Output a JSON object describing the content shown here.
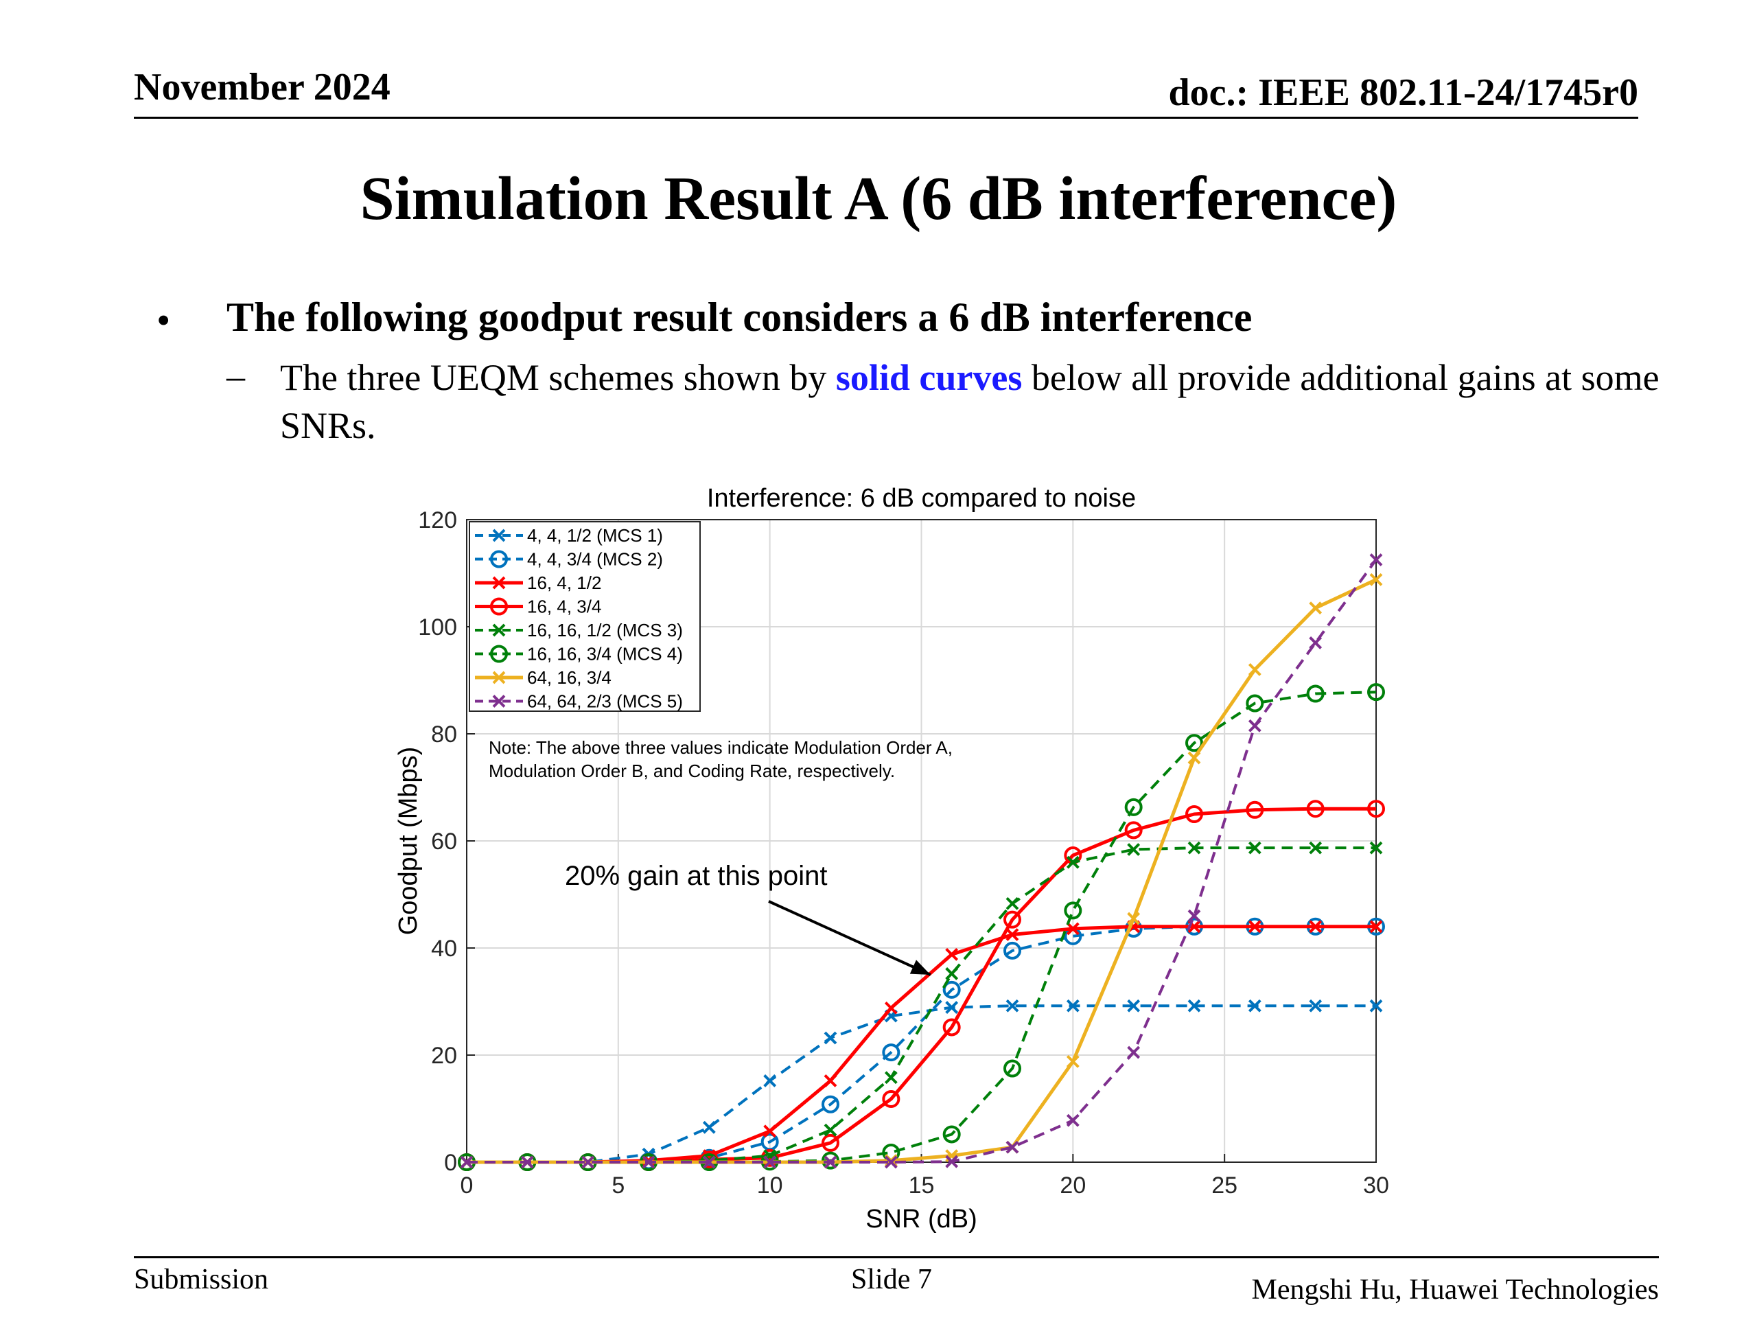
{
  "header": {
    "date": "November 2024",
    "doc": "doc.: IEEE 802.11-24/1745r0"
  },
  "slide_title": "Simulation Result A (6 dB interference)",
  "bullet": {
    "text": "The following goodput result considers a 6 dB interference",
    "sub_before": "The three UEQM schemes shown by ",
    "sub_highlight": "solid curves",
    "sub_after": " below all provide additional gains at some SNRs."
  },
  "colors": {
    "blue": "#0072bd",
    "red": "#ff0000",
    "green": "#00800a",
    "orange": "#edb120",
    "purple": "#7e2f8e",
    "highlight_text": "#1a1aff"
  },
  "chart_data": {
    "type": "line",
    "title": "Interference: 6 dB compared to noise",
    "xlabel": "SNR (dB)",
    "ylabel": "Goodput (Mbps)",
    "xlim": [
      0,
      30
    ],
    "ylim": [
      0,
      120
    ],
    "xticks": [
      0,
      5,
      10,
      15,
      20,
      25,
      30
    ],
    "yticks": [
      0,
      20,
      40,
      60,
      80,
      100,
      120
    ],
    "grid": true,
    "legend_position": "top-left",
    "x": [
      0,
      2,
      4,
      6,
      8,
      10,
      12,
      14,
      16,
      18,
      20,
      22,
      24,
      26,
      28,
      30
    ],
    "series": [
      {
        "name": "4, 4, 1/2 (MCS 1)",
        "color": "#0072bd",
        "style": "dashed",
        "marker": "x",
        "values": [
          0,
          0,
          0,
          1.5,
          6.5,
          15.2,
          23.2,
          27.3,
          28.9,
          29.2,
          29.2,
          29.2,
          29.2,
          29.2,
          29.2,
          29.2
        ]
      },
      {
        "name": "4, 4, 3/4 (MCS 2)",
        "color": "#0072bd",
        "style": "dashed",
        "marker": "o",
        "values": [
          0,
          0,
          0,
          0.2,
          0.8,
          3.8,
          10.8,
          20.5,
          32.2,
          39.5,
          42.2,
          43.6,
          44.0,
          44.0,
          44.0,
          44.0
        ]
      },
      {
        "name": "16, 4, 1/2",
        "color": "#ff0000",
        "style": "solid",
        "marker": "x",
        "values": [
          0,
          0,
          0,
          0.3,
          1.2,
          5.8,
          15.2,
          28.8,
          38.8,
          42.5,
          43.6,
          44.0,
          44.0,
          44.0,
          44.0,
          44.0
        ]
      },
      {
        "name": "16, 4, 3/4",
        "color": "#ff0000",
        "style": "solid",
        "marker": "o",
        "values": [
          0,
          0,
          0,
          0,
          0.5,
          0.8,
          3.6,
          11.8,
          25.2,
          45.3,
          57.3,
          62.0,
          65.0,
          65.8,
          66.0,
          66.0
        ]
      },
      {
        "name": "16, 16, 1/2 (MCS 3)",
        "color": "#00800a",
        "style": "dashed",
        "marker": "x",
        "values": [
          0,
          0,
          0,
          0,
          0.3,
          1.2,
          6.0,
          15.8,
          35.2,
          48.3,
          56.0,
          58.4,
          58.7,
          58.7,
          58.7,
          58.7
        ]
      },
      {
        "name": "16, 16, 3/4 (MCS 4)",
        "color": "#00800a",
        "style": "dashed",
        "marker": "o",
        "values": [
          0,
          0,
          0,
          0,
          0,
          0.1,
          0.3,
          1.8,
          5.2,
          17.5,
          47.0,
          66.3,
          78.3,
          85.7,
          87.5,
          87.8
        ]
      },
      {
        "name": "64, 16, 3/4",
        "color": "#edb120",
        "style": "solid",
        "marker": "x",
        "values": [
          0,
          0,
          0,
          0,
          0,
          0,
          0,
          0.3,
          1.2,
          2.8,
          18.8,
          45.5,
          75.5,
          92.0,
          103.5,
          108.8
        ]
      },
      {
        "name": "64, 64, 2/3 (MCS 5)",
        "color": "#7e2f8e",
        "style": "dashed",
        "marker": "x",
        "values": [
          0,
          0,
          0,
          0,
          0,
          0,
          0,
          0,
          0.1,
          2.8,
          7.8,
          20.5,
          46.0,
          81.5,
          97.0,
          112.5
        ]
      }
    ],
    "annotations": [
      {
        "text": "Note: The above three values indicate Modulation Order A,"
      },
      {
        "text": "Modulation Order B, and Coding Rate, respectively."
      },
      {
        "text": "20% gain at this point",
        "arrow_to": {
          "x": 15.3,
          "y": 35
        }
      }
    ]
  },
  "footer": {
    "left": "Submission",
    "center": "Slide 7",
    "right": "Mengshi Hu, Huawei Technologies"
  }
}
